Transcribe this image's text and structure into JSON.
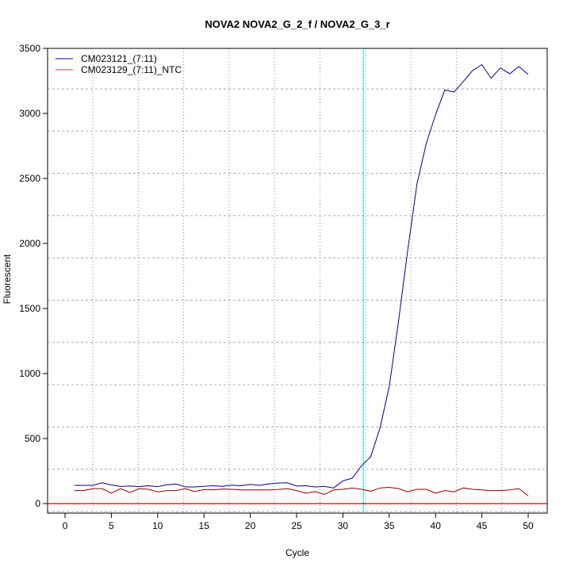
{
  "chart_data": {
    "type": "line",
    "title": "NOVA2  NOVA2_G_2_f / NOVA2_G_3_r",
    "xlabel": "Cycle",
    "ylabel": "Fluorescent",
    "xlim": [
      -2,
      52
    ],
    "ylim": [
      -70,
      3500
    ],
    "xticks": [
      0,
      5,
      10,
      15,
      20,
      25,
      30,
      35,
      40,
      45,
      50
    ],
    "yticks": [
      0,
      500,
      1000,
      1500,
      2000,
      2500,
      3000,
      3500
    ],
    "grid": true,
    "legend": "top-left",
    "threshold": {
      "value": 0,
      "color": "#cc0000"
    },
    "marker_cycle": 32.2,
    "marker_color": "#00e5e5",
    "x": [
      1,
      2,
      3,
      4,
      5,
      6,
      7,
      8,
      9,
      10,
      11,
      12,
      13,
      14,
      15,
      16,
      17,
      18,
      19,
      20,
      21,
      22,
      23,
      24,
      25,
      26,
      27,
      28,
      29,
      30,
      31,
      32,
      33,
      34,
      35,
      36,
      37,
      38,
      39,
      40,
      41,
      42,
      43,
      44,
      45,
      46,
      47,
      48,
      49,
      50
    ],
    "series": [
      {
        "name": "CM023121_(7:11)",
        "color": "#00008b",
        "values": [
          140,
          140,
          140,
          160,
          143,
          132,
          135,
          130,
          137,
          130,
          145,
          150,
          128,
          128,
          133,
          137,
          133,
          142,
          137,
          148,
          140,
          152,
          158,
          160,
          135,
          137,
          128,
          132,
          120,
          175,
          195,
          290,
          360,
          580,
          900,
          1400,
          1950,
          2460,
          2770,
          2990,
          3180,
          3165,
          3245,
          3330,
          3375,
          3270,
          3350,
          3305,
          3360,
          3300
        ]
      },
      {
        "name": "CM023129_(7:11)_NTC",
        "color": "#8b0000",
        "values": [
          100,
          100,
          115,
          115,
          80,
          115,
          85,
          115,
          110,
          90,
          100,
          100,
          115,
          92,
          108,
          105,
          112,
          110,
          105,
          105,
          105,
          105,
          108,
          115,
          100,
          80,
          92,
          70,
          105,
          110,
          120,
          110,
          95,
          120,
          125,
          115,
          90,
          110,
          110,
          80,
          100,
          90,
          120,
          110,
          105,
          100,
          100,
          105,
          115,
          60
        ]
      }
    ]
  }
}
